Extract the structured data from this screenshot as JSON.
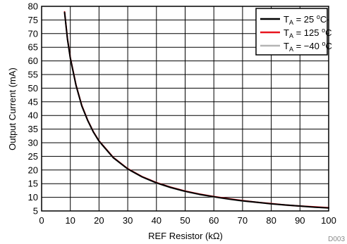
{
  "chart_data": {
    "type": "line",
    "xlabel": "REF Resistor (kΩ)",
    "ylabel": "Output Current (mA)",
    "xlim": [
      0,
      100
    ],
    "ylim": [
      5,
      80
    ],
    "x_ticks": [
      "0",
      "10",
      "20",
      "30",
      "40",
      "50",
      "60",
      "70",
      "80",
      "90",
      "100"
    ],
    "y_ticks": [
      "5",
      "10",
      "15",
      "20",
      "25",
      "30",
      "35",
      "40",
      "45",
      "50",
      "55",
      "60",
      "65",
      "70",
      "75",
      "80"
    ],
    "grid": true,
    "legend_position": "top-right",
    "x": [
      8,
      9,
      10,
      12,
      14,
      16,
      18,
      20,
      25,
      30,
      35,
      40,
      45,
      50,
      55,
      60,
      65,
      70,
      75,
      80,
      85,
      90,
      95,
      100
    ],
    "series": [
      {
        "name": "TA = 25 oC",
        "label_main": "T",
        "label_sub": "A",
        "label_mid": " = 25 ",
        "label_sup": "o",
        "label_end": "C",
        "color": "#000000",
        "values": [
          77.8,
          68.0,
          61.0,
          51.0,
          43.5,
          38.3,
          34.0,
          30.6,
          24.5,
          20.4,
          17.5,
          15.3,
          13.6,
          12.2,
          11.1,
          10.2,
          9.4,
          8.7,
          8.2,
          7.6,
          7.2,
          6.8,
          6.4,
          6.1
        ]
      },
      {
        "name": "TA = 125 oC",
        "label_main": "T",
        "label_sub": "A",
        "label_mid": " = 125 ",
        "label_sup": "o",
        "label_end": "C",
        "color": "#e8141e",
        "values": [
          78.0,
          68.2,
          61.2,
          51.1,
          43.7,
          38.4,
          34.1,
          30.7,
          24.6,
          20.5,
          17.6,
          15.4,
          13.7,
          12.3,
          11.2,
          10.3,
          9.5,
          8.8,
          8.2,
          7.7,
          7.2,
          6.8,
          6.5,
          6.2
        ]
      },
      {
        "name": "TA = −40 oC",
        "label_main": "T",
        "label_sub": "A",
        "label_mid": " = −40 ",
        "label_sup": "o",
        "label_end": "C",
        "color": "#b4b4b4",
        "values": [
          77.6,
          67.9,
          60.9,
          50.9,
          43.4,
          38.2,
          33.9,
          30.5,
          24.4,
          20.3,
          17.4,
          15.2,
          13.5,
          12.1,
          11.0,
          10.1,
          9.3,
          8.6,
          8.1,
          7.6,
          7.1,
          6.7,
          6.4,
          6.1
        ]
      }
    ]
  },
  "footnote": "D003"
}
